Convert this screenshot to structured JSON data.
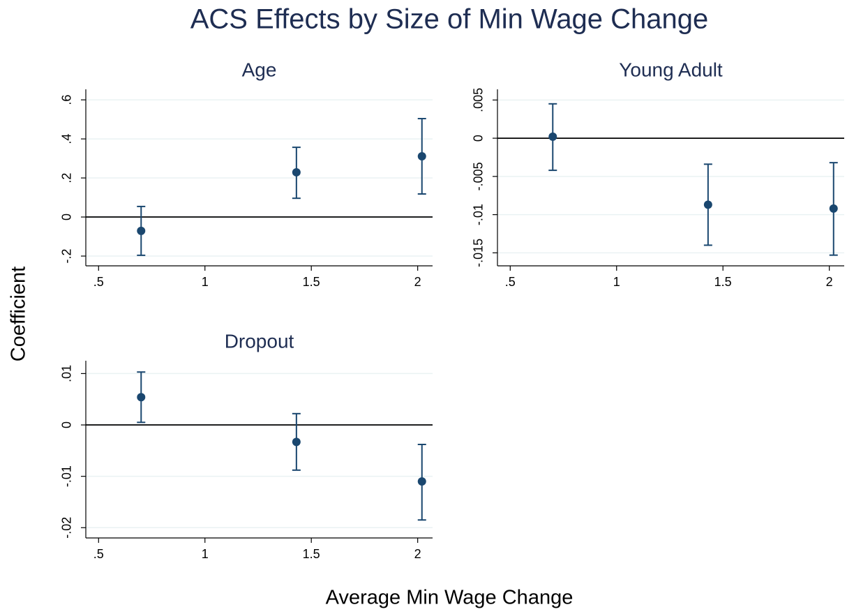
{
  "title": "ACS Effects by Size of Min Wage Change",
  "x_label": "Average Min Wage Change",
  "y_label": "Coefficient",
  "chart_data": [
    {
      "type": "scatter",
      "title": "Age",
      "x": [
        0.7,
        1.43,
        2.02
      ],
      "values": [
        -0.071,
        0.229,
        0.311
      ],
      "lower": [
        -0.196,
        0.096,
        0.118
      ],
      "upper": [
        0.054,
        0.357,
        0.504
      ],
      "color": "#1a476f",
      "reference_line": 0,
      "grid": true,
      "xlim": [
        0.44,
        2.07
      ],
      "ylim": [
        -0.25,
        0.654
      ],
      "xticks": [
        {
          "value": 0.5,
          "label": ".5"
        },
        1,
        1.5,
        2
      ],
      "yticks": [
        {
          "value": -0.2,
          "label": "-.2"
        },
        0,
        {
          "value": 0.2,
          "label": ".2"
        },
        {
          "value": 0.4,
          "label": ".4"
        },
        {
          "value": 0.6,
          "label": ".6"
        }
      ]
    },
    {
      "type": "scatter",
      "title": "Young Adult",
      "x": [
        0.7,
        1.43,
        2.02
      ],
      "values": [
        0.0002,
        -0.0087,
        -0.0092
      ],
      "lower": [
        -0.0042,
        -0.014,
        -0.0153
      ],
      "upper": [
        0.0045,
        -0.0034,
        -0.0032
      ],
      "color": "#1a476f",
      "reference_line": 0,
      "grid": true,
      "xlim": [
        0.44,
        2.07
      ],
      "ylim": [
        -0.0167,
        0.0064
      ],
      "xticks": [
        {
          "value": 0.5,
          "label": ".5"
        },
        1,
        1.5,
        2
      ],
      "yticks": [
        {
          "value": -0.015,
          "label": "-.015"
        },
        {
          "value": -0.01,
          "label": "-.01"
        },
        {
          "value": -0.005,
          "label": "-.005"
        },
        0,
        {
          "value": 0.005,
          "label": ".005"
        }
      ]
    },
    {
      "type": "scatter",
      "title": "Dropout",
      "x": [
        0.7,
        1.43,
        2.02
      ],
      "values": [
        0.0054,
        -0.0033,
        -0.011
      ],
      "lower": [
        0.0005,
        -0.0088,
        -0.0185
      ],
      "upper": [
        0.0103,
        0.0022,
        -0.0038
      ],
      "color": "#1a476f",
      "reference_line": 0,
      "grid": true,
      "xlim": [
        0.44,
        2.07
      ],
      "ylim": [
        -0.022,
        0.0125
      ],
      "xticks": [
        {
          "value": 0.5,
          "label": ".5"
        },
        1,
        1.5,
        2
      ],
      "yticks": [
        {
          "value": -0.02,
          "label": "-.02"
        },
        {
          "value": -0.01,
          "label": "-.01"
        },
        0,
        {
          "value": 0.01,
          "label": ".01"
        }
      ]
    }
  ]
}
